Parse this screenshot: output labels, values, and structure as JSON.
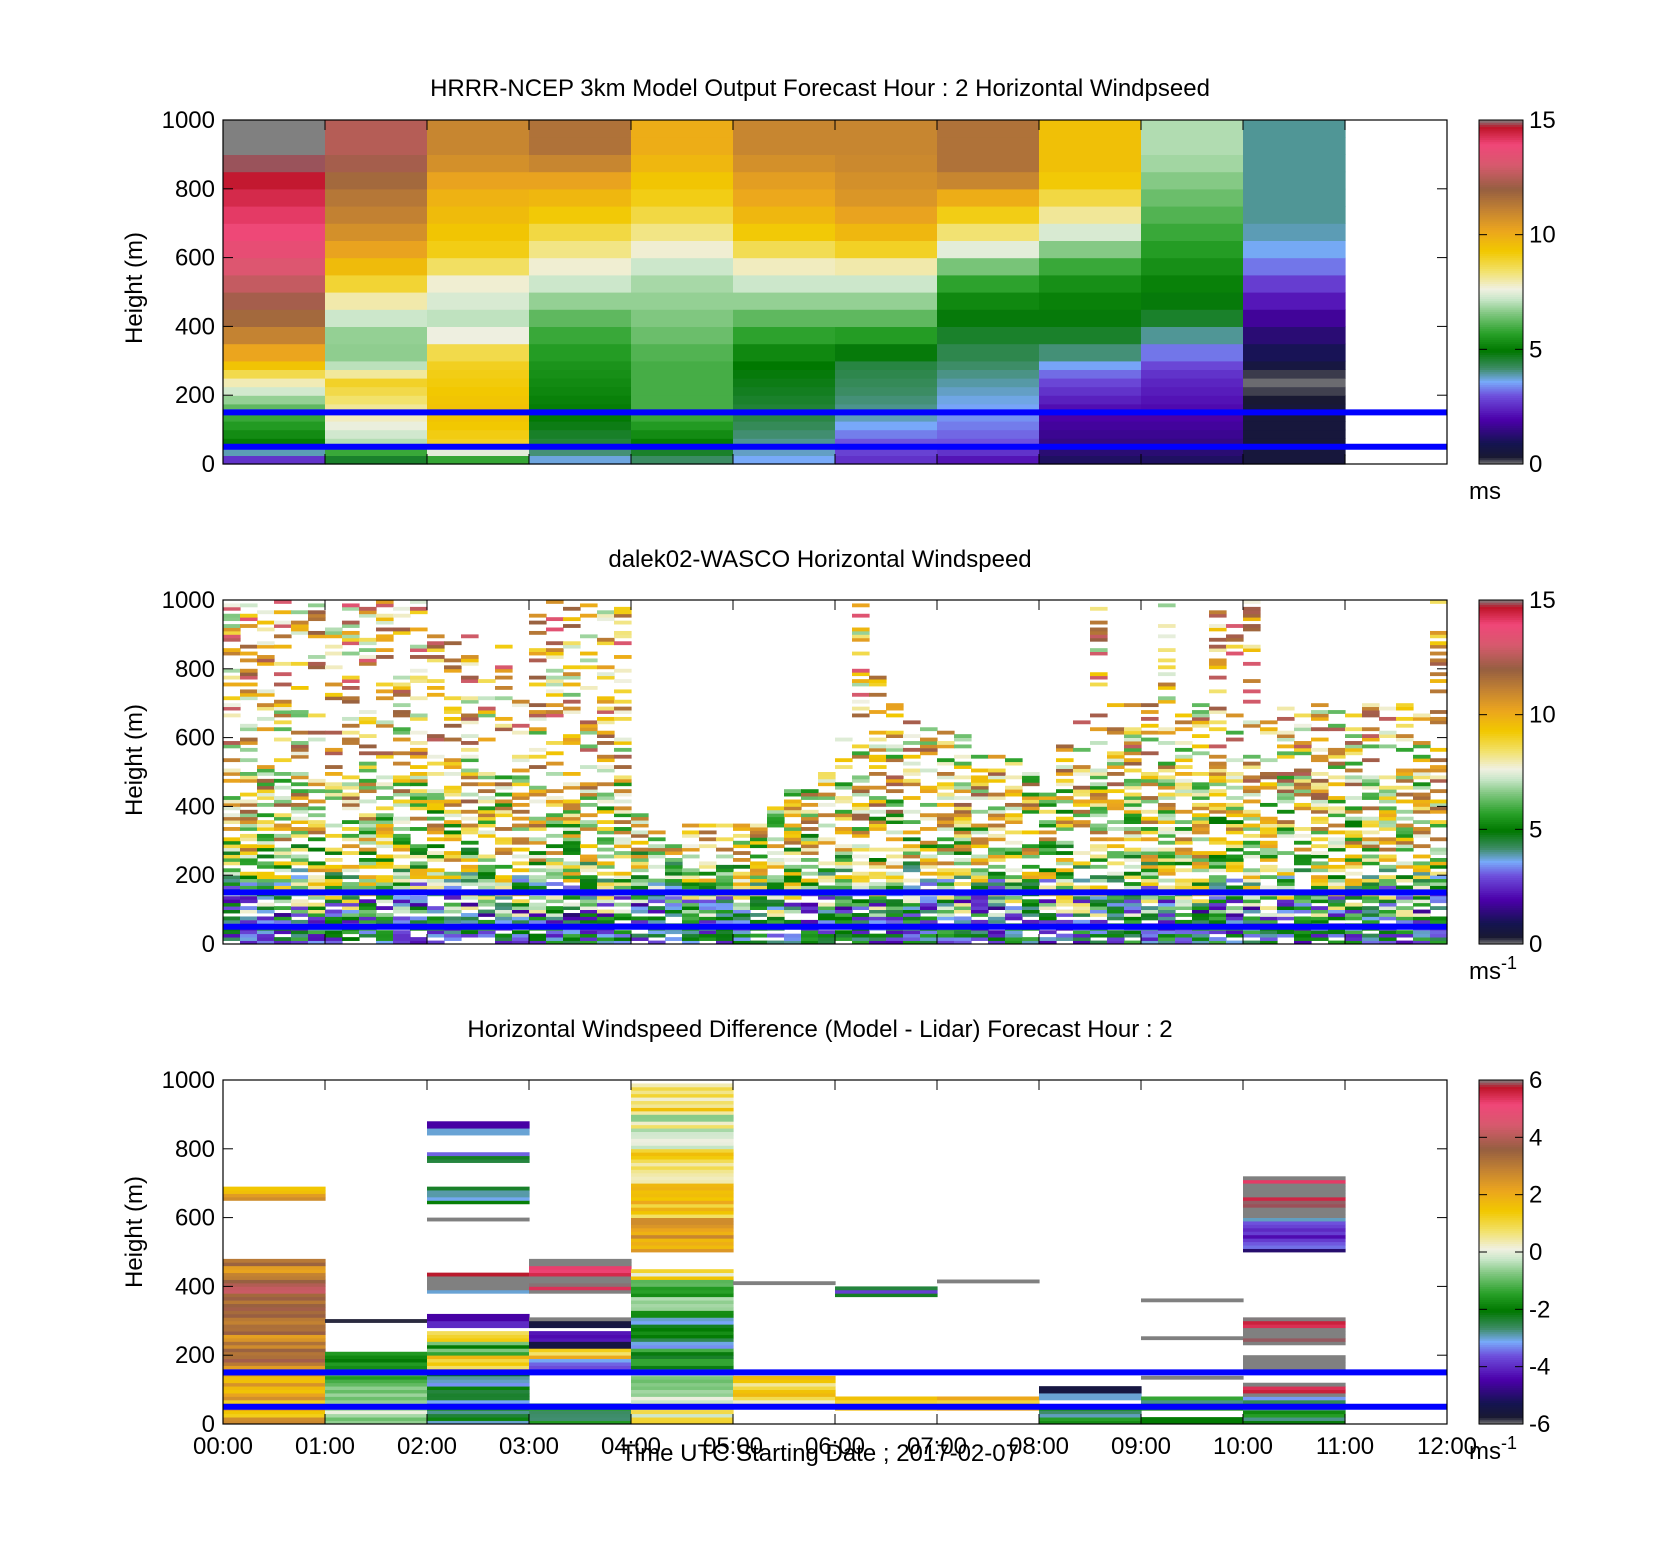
{
  "figure": {
    "xaxis": {
      "label": "Time UTC  Starting Date ; 2017-02-07",
      "ticks": [
        "00:00",
        "01:00",
        "02:00",
        "03:00",
        "04:00",
        "05:00",
        "06:00",
        "07:00",
        "08:00",
        "09:00",
        "10:00",
        "11:00",
        "12:00"
      ]
    },
    "reference_lines": {
      "color": "#0000ff",
      "heights_m": [
        50,
        150
      ]
    }
  },
  "chart_data": [
    {
      "type": "heatmap",
      "title": "HRRR-NCEP 3km Model Output   Forecast Hour : 2 Horizontal Windpseed",
      "ylabel": "Height (m)",
      "xlim": [
        "00:00",
        "12:00"
      ],
      "ylim": [
        0,
        1000
      ],
      "yticks": [
        "0",
        "200",
        "400",
        "600",
        "800",
        "1000"
      ],
      "colorbar": {
        "ticks": [
          "0",
          "5",
          "10",
          "15"
        ],
        "range": [
          0,
          15
        ],
        "unit": "ms",
        "unit_sup": ""
      },
      "hour_columns": [
        {
          "hour": "00:00",
          "profile": [
            [
              0,
              2
            ],
            [
              60,
              5
            ],
            [
              150,
              6
            ],
            [
              200,
              7
            ],
            [
              240,
              8
            ],
            [
              290,
              9.5
            ],
            [
              340,
              10.5
            ],
            [
              400,
              11.5
            ],
            [
              500,
              12.5
            ],
            [
              600,
              13.5
            ],
            [
              700,
              14
            ],
            [
              800,
              14.5
            ],
            [
              900,
              15
            ]
          ]
        },
        {
          "hour": "01:00",
          "profile": [
            [
              0,
              4
            ],
            [
              60,
              7
            ],
            [
              150,
              8
            ],
            [
              240,
              9
            ],
            [
              290,
              7
            ],
            [
              350,
              6.5
            ],
            [
              450,
              7.5
            ],
            [
              500,
              8.5
            ],
            [
              600,
              10
            ],
            [
              700,
              11
            ],
            [
              800,
              11.5
            ],
            [
              900,
              12.5
            ]
          ]
        },
        {
          "hour": "02:00",
          "profile": [
            [
              0,
              5
            ],
            [
              60,
              9
            ],
            [
              150,
              9.5
            ],
            [
              300,
              9
            ],
            [
              340,
              8.5
            ],
            [
              400,
              7
            ],
            [
              500,
              7.5
            ],
            [
              550,
              8
            ],
            [
              600,
              9
            ],
            [
              700,
              9.5
            ],
            [
              800,
              10
            ],
            [
              900,
              11
            ]
          ]
        },
        {
          "hour": "03:00",
          "profile": [
            [
              0,
              3.5
            ],
            [
              60,
              4.5
            ],
            [
              150,
              5
            ],
            [
              300,
              5.5
            ],
            [
              400,
              6
            ],
            [
              450,
              6.5
            ],
            [
              550,
              7.5
            ],
            [
              650,
              8.5
            ],
            [
              750,
              9.5
            ],
            [
              850,
              10.5
            ],
            [
              900,
              11.5
            ]
          ]
        },
        {
          "hour": "04:00",
          "profile": [
            [
              0,
              4
            ],
            [
              60,
              5
            ],
            [
              150,
              6
            ],
            [
              300,
              6
            ],
            [
              400,
              6.5
            ],
            [
              550,
              7
            ],
            [
              650,
              8
            ],
            [
              750,
              9
            ],
            [
              850,
              9.5
            ],
            [
              900,
              10
            ]
          ]
        },
        {
          "hour": "05:00",
          "profile": [
            [
              0,
              3.5
            ],
            [
              60,
              4
            ],
            [
              150,
              4.5
            ],
            [
              300,
              5
            ],
            [
              400,
              6
            ],
            [
              550,
              7.5
            ],
            [
              650,
              9
            ],
            [
              750,
              10
            ],
            [
              850,
              10.5
            ],
            [
              900,
              11
            ]
          ]
        },
        {
          "hour": "06:00",
          "profile": [
            [
              0,
              2.5
            ],
            [
              60,
              3
            ],
            [
              150,
              4
            ],
            [
              300,
              4.5
            ],
            [
              400,
              6
            ],
            [
              450,
              6.5
            ],
            [
              550,
              7.5
            ],
            [
              650,
              9.5
            ],
            [
              750,
              10.5
            ],
            [
              900,
              11
            ]
          ]
        },
        {
          "hour": "07:00",
          "profile": [
            [
              0,
              2
            ],
            [
              60,
              3
            ],
            [
              150,
              3.5
            ],
            [
              250,
              4
            ],
            [
              350,
              4.5
            ],
            [
              450,
              5
            ],
            [
              550,
              6
            ],
            [
              650,
              8
            ],
            [
              750,
              9.5
            ],
            [
              850,
              11.5
            ]
          ]
        },
        {
          "hour": "08:00",
          "profile": [
            [
              0,
              1
            ],
            [
              60,
              1.5
            ],
            [
              150,
              2
            ],
            [
              250,
              3
            ],
            [
              350,
              4.5
            ],
            [
              450,
              5
            ],
            [
              550,
              5.5
            ],
            [
              650,
              7
            ],
            [
              750,
              8.5
            ],
            [
              850,
              9.5
            ]
          ]
        },
        {
          "hour": "09:00",
          "profile": [
            [
              0,
              1
            ],
            [
              60,
              1.5
            ],
            [
              150,
              2
            ],
            [
              250,
              2.5
            ],
            [
              350,
              3.5
            ],
            [
              400,
              4.5
            ],
            [
              500,
              5
            ],
            [
              600,
              5.5
            ],
            [
              700,
              6
            ],
            [
              800,
              6.5
            ],
            [
              900,
              7
            ]
          ]
        },
        {
          "hour": "10:00",
          "profile": [
            [
              0,
              0.5
            ],
            [
              150,
              0.5
            ],
            [
              250,
              0
            ],
            [
              300,
              0.8
            ],
            [
              400,
              1.5
            ],
            [
              500,
              2.5
            ],
            [
              600,
              3.5
            ],
            [
              700,
              4
            ],
            [
              800,
              4
            ],
            [
              900,
              4
            ]
          ]
        }
      ]
    },
    {
      "type": "heatmap",
      "title": "dalek02-WASCO  Horizontal Windspeed",
      "ylabel": "Height (m)",
      "xlim": [
        "00:00",
        "12:00"
      ],
      "ylim": [
        0,
        1000
      ],
      "yticks": [
        "0",
        "200",
        "400",
        "600",
        "800",
        "1000"
      ],
      "colorbar": {
        "ticks": [
          "0",
          "5",
          "10",
          "15"
        ],
        "range": [
          0,
          15
        ],
        "unit": "ms",
        "unit_sup": "-1"
      },
      "time_step_min": 10,
      "range_gate_m": 10,
      "mean_profile": [
        [
          0,
          4
        ],
        [
          100,
          5
        ],
        [
          250,
          8
        ],
        [
          500,
          9
        ],
        [
          800,
          10
        ]
      ],
      "data_top_m": [
        1000,
        1000,
        1000,
        1000,
        1000,
        1000,
        1000,
        1000,
        1000,
        1000,
        1000,
        1000,
        900,
        900,
        900,
        800,
        900,
        800,
        1000,
        1000,
        1000,
        1000,
        1000,
        1000,
        400,
        350,
        300,
        350,
        350,
        350,
        350,
        350,
        400,
        450,
        450,
        500,
        600,
        1000,
        800,
        700,
        650,
        650,
        650,
        650,
        600,
        550,
        550,
        500,
        450,
        600,
        650,
        1000,
        700,
        700,
        700,
        1000,
        700,
        700,
        1000,
        1000,
        1000,
        700,
        700,
        700,
        700,
        700,
        700,
        700,
        700,
        700,
        700,
        1000
      ],
      "note": "sparse range-gate observations; white = no data"
    },
    {
      "type": "heatmap",
      "title": "Horizontal Windspeed Difference (Model - Lidar) Forecast Hour : 2",
      "ylabel": "Height (m)",
      "xlim": [
        "00:00",
        "12:00"
      ],
      "ylim": [
        0,
        1000
      ],
      "yticks": [
        "0",
        "200",
        "400",
        "600",
        "800",
        "1000"
      ],
      "colorbar": {
        "ticks": [
          "-6",
          "-4",
          "-2",
          "0",
          "2",
          "4",
          "6"
        ],
        "range": [
          -6,
          6
        ],
        "unit": "ms",
        "unit_sup": "-1"
      },
      "hour_blocks": [
        {
          "hour": "00:00",
          "segments": [
            [
              0,
              140,
              2
            ],
            [
              140,
              300,
              3
            ],
            [
              300,
              420,
              3.8
            ],
            [
              420,
              480,
              2.8
            ],
            [
              650,
              690,
              2
            ]
          ]
        },
        {
          "hour": "01:00",
          "segments": [
            [
              0,
              60,
              -0.6
            ],
            [
              60,
              150,
              -1
            ],
            [
              150,
              210,
              -2
            ],
            [
              295,
              305,
              -5.8
            ]
          ]
        },
        {
          "hour": "02:00",
          "segments": [
            [
              0,
              60,
              -2.2
            ],
            [
              60,
              150,
              -2.5
            ],
            [
              150,
              200,
              1.5
            ],
            [
              200,
              240,
              -1.5
            ],
            [
              240,
              270,
              1.2
            ],
            [
              280,
              300,
              -4
            ],
            [
              300,
              320,
              -4.5
            ],
            [
              380,
              390,
              -3
            ],
            [
              390,
              440,
              6
            ],
            [
              590,
              600,
              -6
            ],
            [
              640,
              690,
              -2.5
            ],
            [
              760,
              790,
              -3
            ],
            [
              840,
              860,
              -3
            ],
            [
              860,
              880,
              -4.5
            ]
          ]
        },
        {
          "hour": "03:00",
          "segments": [
            [
              0,
              60,
              -2
            ],
            [
              150,
              190,
              -3
            ],
            [
              190,
              220,
              1.5
            ],
            [
              220,
              240,
              -5.5
            ],
            [
              240,
              270,
              -4
            ],
            [
              280,
              310,
              -6
            ],
            [
              380,
              480,
              6
            ]
          ]
        },
        {
          "hour": "04:00",
          "segments": [
            [
              0,
              60,
              0.6
            ],
            [
              60,
              150,
              -0.5
            ],
            [
              150,
              220,
              -1.5
            ],
            [
              220,
              320,
              -2.5
            ],
            [
              320,
              420,
              -1
            ],
            [
              420,
              450,
              0.8
            ],
            [
              500,
              600,
              2.5
            ],
            [
              600,
              700,
              1.5
            ],
            [
              700,
              800,
              1
            ],
            [
              800,
              900,
              0
            ],
            [
              900,
              990,
              1
            ]
          ]
        },
        {
          "hour": "05:00",
          "segments": [
            [
              50,
              140,
              1
            ],
            [
              405,
              415,
              6
            ]
          ]
        },
        {
          "hour": "06:00",
          "segments": [
            [
              40,
              80,
              1.5
            ],
            [
              370,
              400,
              -3
            ]
          ]
        },
        {
          "hour": "07:00",
          "segments": [
            [
              40,
              80,
              1.5
            ],
            [
              410,
              420,
              6
            ]
          ]
        },
        {
          "hour": "08:00",
          "segments": [
            [
              0,
              50,
              -2.2
            ],
            [
              70,
              90,
              -3
            ],
            [
              90,
              110,
              -5.5
            ]
          ]
        },
        {
          "hour": "09:00",
          "segments": [
            [
              0,
              20,
              -2
            ],
            [
              40,
              80,
              -2
            ],
            [
              130,
              140,
              6
            ],
            [
              245,
              255,
              6
            ],
            [
              355,
              365,
              6
            ]
          ]
        },
        {
          "hour": "10:00",
          "segments": [
            [
              0,
              50,
              -2.2
            ],
            [
              50,
              80,
              -3
            ],
            [
              80,
              120,
              6
            ],
            [
              150,
              200,
              6
            ],
            [
              230,
              310,
              6
            ],
            [
              500,
              510,
              -5
            ],
            [
              510,
              560,
              -4
            ],
            [
              560,
              600,
              -3.5
            ],
            [
              600,
              610,
              -6
            ],
            [
              610,
              720,
              6
            ]
          ]
        }
      ]
    }
  ]
}
